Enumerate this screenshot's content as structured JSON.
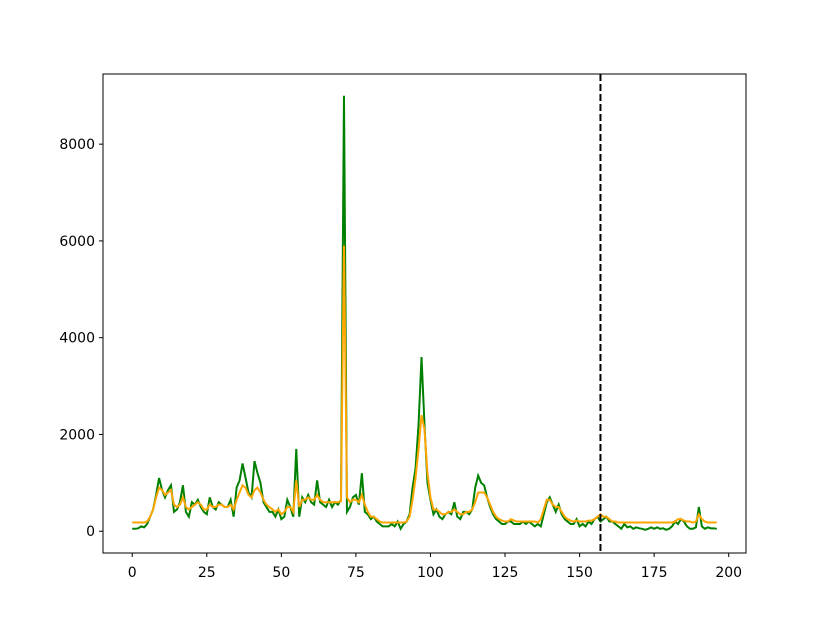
{
  "chart_data": {
    "type": "line",
    "x": [
      0,
      1,
      2,
      3,
      4,
      5,
      6,
      7,
      8,
      9,
      10,
      11,
      12,
      13,
      14,
      15,
      16,
      17,
      18,
      19,
      20,
      21,
      22,
      23,
      24,
      25,
      26,
      27,
      28,
      29,
      30,
      31,
      32,
      33,
      34,
      35,
      36,
      37,
      38,
      39,
      40,
      41,
      42,
      43,
      44,
      45,
      46,
      47,
      48,
      49,
      50,
      51,
      52,
      53,
      54,
      55,
      56,
      57,
      58,
      59,
      60,
      61,
      62,
      63,
      64,
      65,
      66,
      67,
      68,
      69,
      70,
      71,
      72,
      73,
      74,
      75,
      76,
      77,
      78,
      79,
      80,
      81,
      82,
      83,
      84,
      85,
      86,
      87,
      88,
      89,
      90,
      91,
      92,
      93,
      94,
      95,
      96,
      97,
      98,
      99,
      100,
      101,
      102,
      103,
      104,
      105,
      106,
      107,
      108,
      109,
      110,
      111,
      112,
      113,
      114,
      115,
      116,
      117,
      118,
      119,
      120,
      121,
      122,
      123,
      124,
      125,
      126,
      127,
      128,
      129,
      130,
      131,
      132,
      133,
      134,
      135,
      136,
      137,
      138,
      139,
      140,
      141,
      142,
      143,
      144,
      145,
      146,
      147,
      148,
      149,
      150,
      151,
      152,
      153,
      154,
      155,
      156,
      157,
      158,
      159,
      160,
      161,
      162,
      163,
      164,
      165,
      166,
      167,
      168,
      169,
      170,
      171,
      172,
      173,
      174,
      175,
      176,
      177,
      178,
      179,
      180,
      181,
      182,
      183,
      184,
      185,
      186,
      187,
      188,
      189,
      190,
      191,
      192,
      193,
      194,
      195,
      196
    ],
    "series": [
      {
        "color": "#008000",
        "values": [
          50,
          50,
          60,
          100,
          80,
          150,
          300,
          450,
          750,
          1100,
          850,
          700,
          850,
          950,
          400,
          450,
          600,
          950,
          400,
          300,
          600,
          550,
          650,
          500,
          400,
          350,
          700,
          500,
          450,
          600,
          550,
          500,
          500,
          650,
          300,
          900,
          1050,
          1400,
          1100,
          800,
          700,
          1450,
          1200,
          1000,
          600,
          500,
          400,
          400,
          300,
          450,
          250,
          300,
          650,
          500,
          300,
          1700,
          300,
          700,
          600,
          750,
          600,
          550,
          1050,
          600,
          550,
          500,
          650,
          500,
          600,
          550,
          650,
          9000,
          400,
          500,
          700,
          750,
          550,
          1200,
          400,
          350,
          250,
          300,
          200,
          150,
          100,
          100,
          100,
          150,
          100,
          200,
          50,
          150,
          200,
          350,
          900,
          1300,
          2200,
          3600,
          2200,
          1000,
          650,
          350,
          450,
          300,
          250,
          350,
          400,
          350,
          600,
          300,
          250,
          400,
          400,
          350,
          450,
          900,
          1150,
          1000,
          950,
          700,
          500,
          350,
          250,
          200,
          150,
          150,
          200,
          200,
          150,
          150,
          150,
          200,
          150,
          200,
          150,
          100,
          150,
          100,
          350,
          600,
          700,
          550,
          400,
          550,
          350,
          250,
          200,
          150,
          150,
          250,
          100,
          150,
          100,
          200,
          150,
          250,
          300,
          200,
          250,
          300,
          200,
          200,
          150,
          100,
          50,
          150,
          80,
          100,
          50,
          80,
          60,
          50,
          30,
          50,
          80,
          50,
          80,
          50,
          60,
          30,
          50,
          100,
          200,
          150,
          250,
          200,
          100,
          50,
          50,
          80,
          500,
          100,
          50,
          80,
          60,
          60,
          50
        ]
      },
      {
        "color": "#ffa500",
        "values": [
          180,
          180,
          180,
          180,
          180,
          200,
          300,
          450,
          700,
          900,
          850,
          750,
          800,
          850,
          550,
          500,
          550,
          700,
          500,
          450,
          500,
          550,
          600,
          550,
          450,
          450,
          550,
          500,
          500,
          550,
          550,
          500,
          500,
          550,
          450,
          650,
          800,
          950,
          900,
          750,
          700,
          850,
          900,
          800,
          650,
          550,
          500,
          450,
          400,
          450,
          350,
          400,
          500,
          500,
          400,
          1050,
          500,
          650,
          650,
          700,
          650,
          650,
          750,
          650,
          600,
          600,
          600,
          600,
          600,
          600,
          620,
          5900,
          700,
          600,
          650,
          650,
          600,
          750,
          550,
          400,
          300,
          300,
          250,
          200,
          180,
          180,
          180,
          180,
          180,
          180,
          180,
          180,
          200,
          300,
          650,
          1100,
          1700,
          2400,
          2100,
          1200,
          700,
          450,
          450,
          400,
          350,
          350,
          400,
          400,
          450,
          400,
          350,
          350,
          400,
          400,
          450,
          600,
          800,
          800,
          800,
          700,
          550,
          400,
          300,
          250,
          220,
          200,
          200,
          250,
          220,
          200,
          200,
          200,
          200,
          200,
          200,
          200,
          180,
          250,
          450,
          650,
          650,
          550,
          500,
          500,
          400,
          300,
          250,
          220,
          200,
          220,
          200,
          200,
          200,
          220,
          220,
          250,
          300,
          350,
          300,
          300,
          250,
          200,
          200,
          180,
          180,
          180,
          180,
          180,
          180,
          180,
          180,
          180,
          180,
          180,
          180,
          180,
          180,
          180,
          180,
          180,
          180,
          180,
          200,
          250,
          250,
          220,
          200,
          200,
          180,
          200,
          350,
          250,
          200,
          180,
          180,
          180,
          180
        ]
      }
    ],
    "vline": 157,
    "vline_color": "#000000",
    "xlim": [
      -9.8,
      205.8
    ],
    "ylim": [
      -450,
      9450
    ],
    "xticks": [
      0,
      25,
      50,
      75,
      100,
      125,
      150,
      175,
      200
    ],
    "yticks": [
      0,
      2000,
      4000,
      6000,
      8000
    ]
  }
}
